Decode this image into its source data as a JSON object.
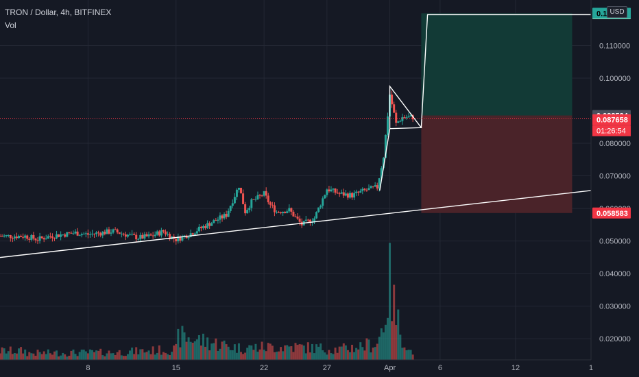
{
  "header": {
    "title": "TRON / Dollar, 4h, BITFINEX",
    "indicator": "Vol",
    "currency": "USD"
  },
  "colors": {
    "background": "#151924",
    "grid": "#242834",
    "bull": "#26a69a",
    "bear": "#ef5350",
    "profit_zone": "#123a36",
    "loss_zone": "#4a2329",
    "drawing": "#ffffff",
    "target_label": "#26a69a",
    "stop_label": "#f23645",
    "entry_label": "#4a4f5c",
    "current_label": "#f23645"
  },
  "chart_data": {
    "type": "candlestick",
    "title": "TRON / Dollar, 4h, BITFINEX",
    "x_ticks": [
      "8",
      "15",
      "22",
      "27",
      "Apr",
      "6",
      "12",
      "1"
    ],
    "y_ticks": [
      "0.020000",
      "0.030000",
      "0.040000",
      "0.050000",
      "0.060000",
      "0.070000",
      "0.080000",
      "0.100000",
      "0.110000"
    ],
    "ylim": [
      0.0135,
      0.124
    ],
    "price_labels": {
      "target": "0.119923",
      "entry": "0.088534",
      "current": "0.087658",
      "countdown": "01:26:54",
      "stop": "0.058583",
      "obscured": "0.1 0"
    },
    "price_series": [
      {
        "d": 3,
        "p": 0.0515
      },
      {
        "d": 4,
        "p": 0.0505
      },
      {
        "d": 5,
        "p": 0.0515
      },
      {
        "d": 6,
        "p": 0.052
      },
      {
        "d": 7,
        "p": 0.0525
      },
      {
        "d": 8,
        "p": 0.052
      },
      {
        "d": 9,
        "p": 0.0525
      },
      {
        "d": 10,
        "p": 0.053
      },
      {
        "d": 11,
        "p": 0.052
      },
      {
        "d": 12,
        "p": 0.051
      },
      {
        "d": 13,
        "p": 0.0515
      },
      {
        "d": 14,
        "p": 0.053
      },
      {
        "d": 14.5,
        "p": 0.0515
      },
      {
        "d": 15,
        "p": 0.0505
      },
      {
        "d": 16,
        "p": 0.052
      },
      {
        "d": 17,
        "p": 0.054
      },
      {
        "d": 18,
        "p": 0.056
      },
      {
        "d": 19,
        "p": 0.058
      },
      {
        "d": 20,
        "p": 0.067
      },
      {
        "d": 20.5,
        "p": 0.059
      },
      {
        "d": 21,
        "p": 0.062
      },
      {
        "d": 22,
        "p": 0.0645
      },
      {
        "d": 22.5,
        "p": 0.061
      },
      {
        "d": 23,
        "p": 0.059
      },
      {
        "d": 24,
        "p": 0.0595
      },
      {
        "d": 25,
        "p": 0.055
      },
      {
        "d": 26,
        "p": 0.057
      },
      {
        "d": 27,
        "p": 0.066
      },
      {
        "d": 28,
        "p": 0.0645
      },
      {
        "d": 29,
        "p": 0.064
      },
      {
        "d": 30,
        "p": 0.0655
      },
      {
        "d": 31,
        "p": 0.0665
      },
      {
        "d": 31.5,
        "p": 0.076
      },
      {
        "d": 32,
        "p": 0.095
      },
      {
        "d": 32.5,
        "p": 0.086
      },
      {
        "d": 33,
        "p": 0.088
      }
    ],
    "volume_series": [
      {
        "d": 3,
        "v": 0.45
      },
      {
        "d": 10,
        "v": 0.5
      },
      {
        "d": 15,
        "v": 0.7
      },
      {
        "d": 15.2,
        "v": 1.6
      },
      {
        "d": 20,
        "v": 0.8
      },
      {
        "d": 24,
        "v": 0.9
      },
      {
        "d": 28,
        "v": 0.7
      },
      {
        "d": 31,
        "v": 1.1
      },
      {
        "d": 31.5,
        "v": 2.5
      },
      {
        "d": 32,
        "v": 5.2
      },
      {
        "d": 32.5,
        "v": 2.8
      },
      {
        "d": 33.5,
        "v": 0.6
      }
    ],
    "volume_ylim": [
      0,
      5.5
    ],
    "trendline": {
      "d1": 0,
      "p1": 0.0445,
      "d2": 48,
      "p2": 0.0655
    },
    "pennant": {
      "apex_d": 32,
      "apex_p": 0.0975,
      "base_d": 32,
      "base_p": 0.0845,
      "tip_d": 34.5,
      "tip_p": 0.0848,
      "upper_end_d": 34,
      "upper_end_p": 0.0868
    },
    "projection": {
      "from_d": 34.5,
      "from_p": 0.0848,
      "to_d": 35,
      "to_p": 0.1195,
      "end_d": 48,
      "end_p": 0.1195
    },
    "position": {
      "start_d": 34.5,
      "end_d": 46.5,
      "target": 0.119923,
      "entry": 0.088534,
      "stop": 0.058583
    },
    "x_range_days": [
      1,
      48
    ],
    "x_tick_days": [
      8,
      15,
      22,
      27,
      32,
      36,
      42,
      48
    ]
  }
}
